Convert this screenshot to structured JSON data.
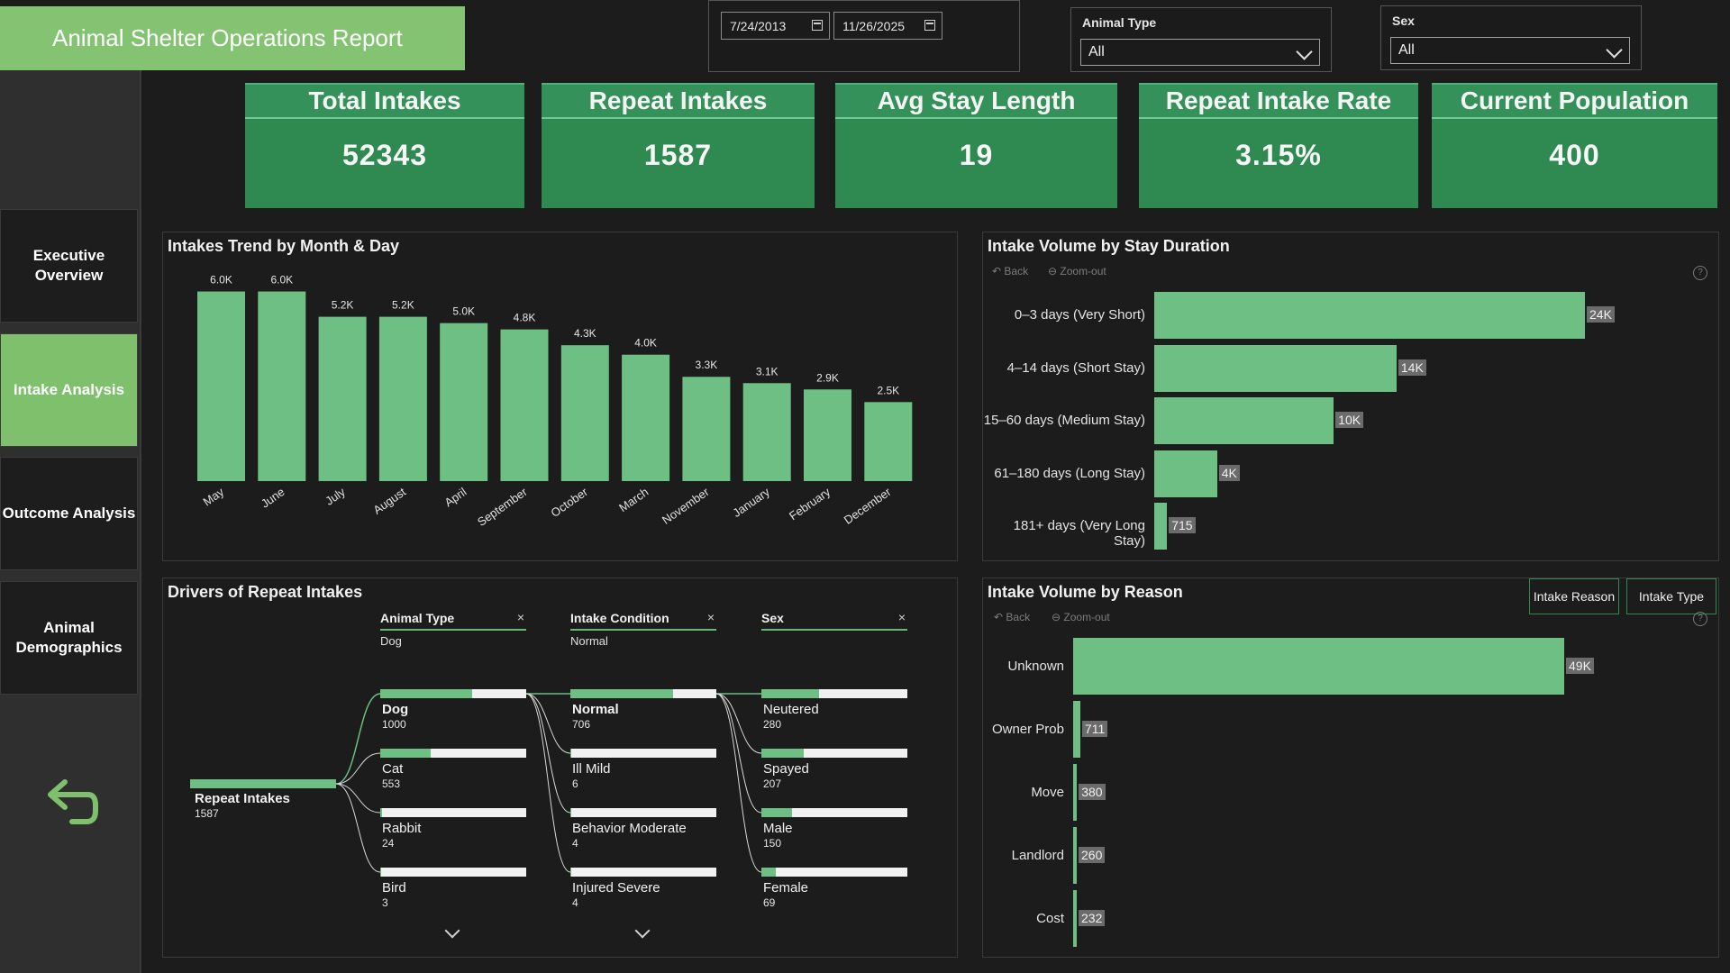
{
  "header": {
    "title": "Animal Shelter Operations Report"
  },
  "date_range": {
    "start": "7/24/2013",
    "end": "11/26/2025"
  },
  "filters": [
    {
      "label": "Animal Type",
      "value": "All"
    },
    {
      "label": "Sex",
      "value": "All"
    }
  ],
  "kpis": [
    {
      "label": "Total Intakes",
      "value": "52343"
    },
    {
      "label": "Repeat Intakes",
      "value": "1587"
    },
    {
      "label": "Avg Stay Length",
      "value": "19"
    },
    {
      "label": "Repeat Intake Rate",
      "value": "3.15%"
    },
    {
      "label": "Current Population",
      "value": "400"
    }
  ],
  "nav": [
    {
      "label": "Executive Overview",
      "active": false
    },
    {
      "label": "Intake Analysis",
      "active": true
    },
    {
      "label": "Outcome Analysis",
      "active": false
    },
    {
      "label": "Animal Demographics",
      "active": false
    }
  ],
  "panels": {
    "trend_title": "Intakes Trend by Month & Day",
    "stay_title": "Intake Volume by Stay Duration",
    "drivers_title": "Drivers of Repeat Intakes",
    "reason_title": "Intake Volume by Reason"
  },
  "controls": {
    "back": "Back",
    "zoom_out": "Zoom-out",
    "help": "?"
  },
  "reason_tabs": [
    "Intake Reason",
    "Intake Type"
  ],
  "colors": {
    "accent": "#6dbf83",
    "kpi_bg": "#2f8a52",
    "title_bg": "#83c372",
    "nav_active": "#7fc06c"
  },
  "chart_data": [
    {
      "type": "bar",
      "title": "Intakes Trend by Month & Day",
      "categories": [
        "May",
        "June",
        "July",
        "August",
        "April",
        "September",
        "October",
        "March",
        "November",
        "January",
        "February",
        "December"
      ],
      "values": [
        6000,
        6000,
        5200,
        5200,
        5000,
        4800,
        4300,
        4000,
        3300,
        3100,
        2900,
        2500
      ],
      "labels": [
        "6.0K",
        "6.0K",
        "5.2K",
        "5.2K",
        "5.0K",
        "4.8K",
        "4.3K",
        "4.0K",
        "3.3K",
        "3.1K",
        "2.9K",
        "2.5K"
      ],
      "ylim": [
        0,
        6500
      ]
    },
    {
      "type": "bar",
      "orientation": "horizontal",
      "title": "Intake Volume by Stay Duration",
      "categories": [
        "0–3 days (Very Short)",
        "4–14 days (Short Stay)",
        "15–60 days (Medium Stay)",
        "61–180 days (Long Stay)",
        "181+ days (Very Long Stay)"
      ],
      "values": [
        24000,
        13500,
        10000,
        3500,
        715
      ],
      "labels": [
        "24K",
        "14K",
        "10K",
        "4K",
        "715"
      ],
      "xlim": [
        0,
        24000
      ]
    },
    {
      "type": "bar",
      "orientation": "horizontal",
      "title": "Intake Volume by Reason",
      "categories": [
        "Unknown",
        "Owner Prob",
        "Move",
        "Landlord",
        "Cost"
      ],
      "values": [
        49000,
        711,
        380,
        260,
        232
      ],
      "labels": [
        "49K",
        "711",
        "380",
        "260",
        "232"
      ],
      "xlim": [
        0,
        49000
      ]
    }
  ],
  "decomposition": {
    "root": {
      "label": "Repeat Intakes",
      "count": "1587"
    },
    "levels": [
      {
        "header": "Animal Type",
        "selected": "Dog",
        "total": 1587,
        "nodes": [
          {
            "label": "Dog",
            "count": "1000",
            "value": 1000,
            "bold": true
          },
          {
            "label": "Cat",
            "count": "553",
            "value": 553
          },
          {
            "label": "Rabbit",
            "count": "24",
            "value": 24
          },
          {
            "label": "Bird",
            "count": "3",
            "value": 3
          }
        ]
      },
      {
        "header": "Intake Condition",
        "selected": "Normal",
        "total": 1000,
        "nodes": [
          {
            "label": "Normal",
            "count": "706",
            "value": 706,
            "bold": true
          },
          {
            "label": "Ill Mild",
            "count": "6",
            "value": 6
          },
          {
            "label": "Behavior Moderate",
            "count": "4",
            "value": 4
          },
          {
            "label": "Injured Severe",
            "count": "4",
            "value": 4
          }
        ]
      },
      {
        "header": "Sex",
        "selected": "",
        "total": 706,
        "nodes": [
          {
            "label": "Neutered",
            "count": "280",
            "value": 280
          },
          {
            "label": "Spayed",
            "count": "207",
            "value": 207
          },
          {
            "label": "Male",
            "count": "150",
            "value": 150
          },
          {
            "label": "Female",
            "count": "69",
            "value": 69
          }
        ]
      }
    ]
  }
}
